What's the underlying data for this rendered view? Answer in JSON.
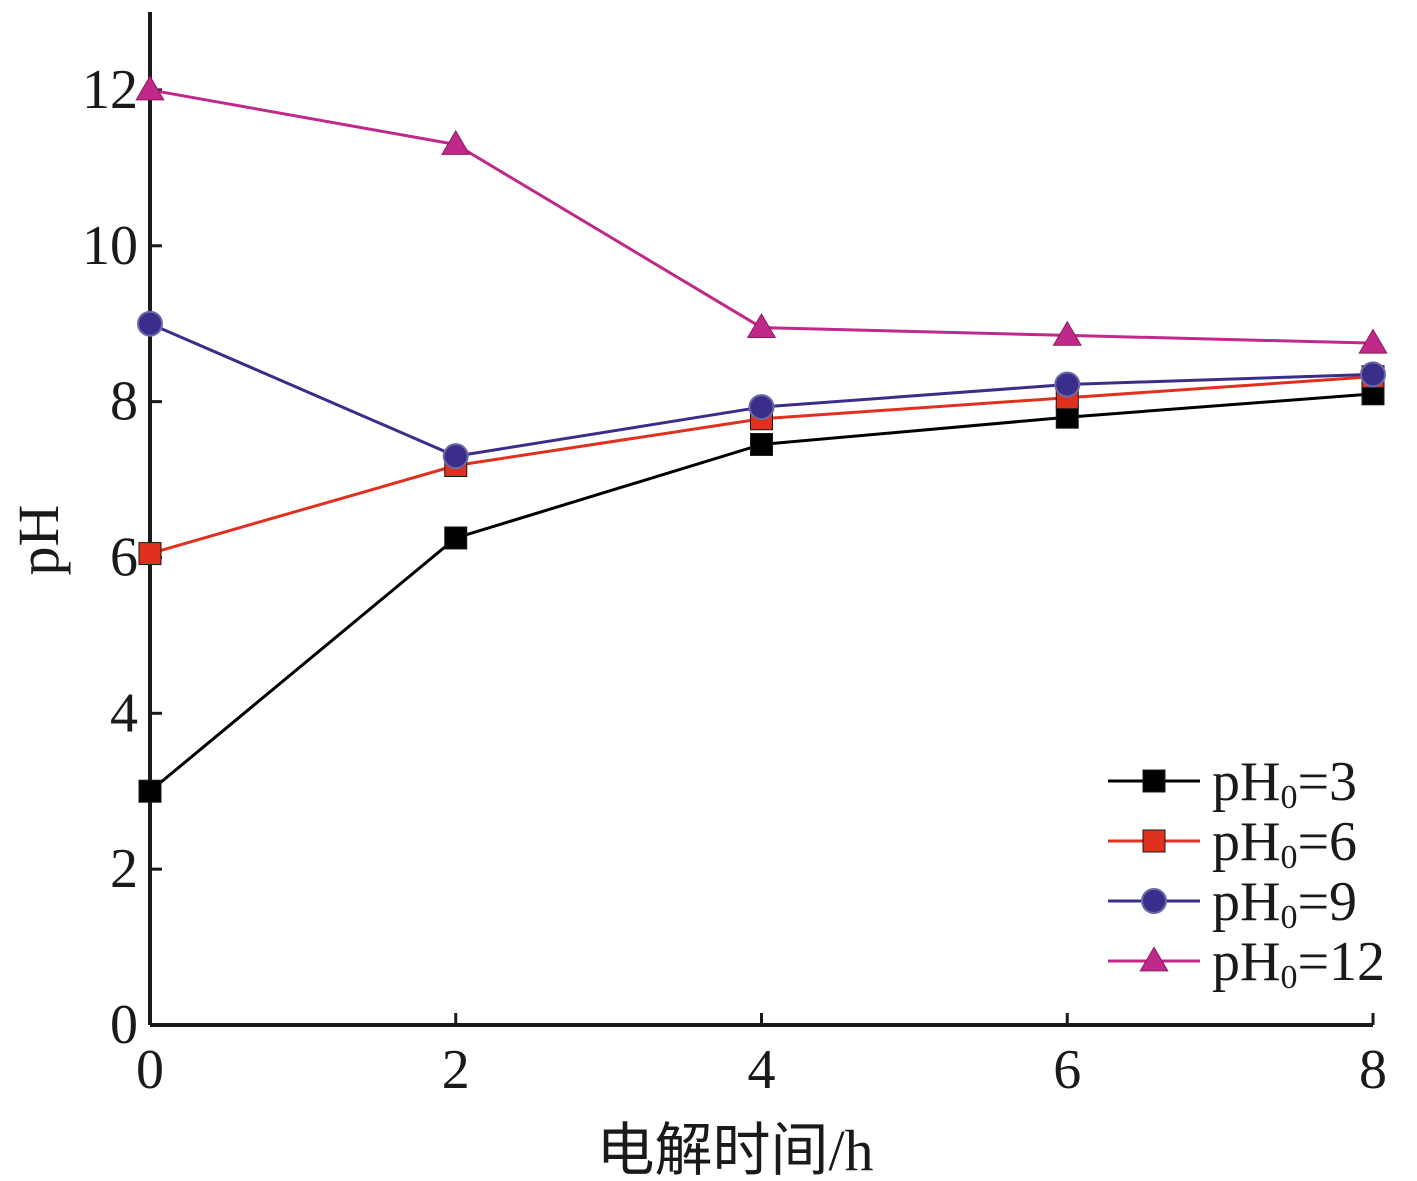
{
  "chart_data": {
    "type": "line",
    "xlabel": "电解时间/h",
    "ylabel": "pH",
    "xlim": [
      0,
      8
    ],
    "ylim": [
      0,
      13
    ],
    "xticks": [
      0,
      2,
      4,
      6,
      8
    ],
    "yticks": [
      0,
      2,
      4,
      6,
      8,
      10,
      12
    ],
    "x": [
      0,
      2,
      4,
      6,
      8
    ],
    "grid": false,
    "legend_position": "bottom-right",
    "series": [
      {
        "name": "pH0=3",
        "legend_main": "pH",
        "legend_sub": "0",
        "legend_tail": "=3",
        "color": "#000000",
        "marker": "square",
        "values": [
          3.0,
          6.25,
          7.45,
          7.8,
          8.1
        ]
      },
      {
        "name": "pH0=6",
        "legend_main": "pH",
        "legend_sub": "0",
        "legend_tail": "=6",
        "color": "#e0301e",
        "marker": "square",
        "values": [
          6.05,
          7.18,
          7.78,
          8.05,
          8.32
        ]
      },
      {
        "name": "pH0=9",
        "legend_main": "pH",
        "legend_sub": "0",
        "legend_tail": "=9",
        "color": "#3b2e8a",
        "marker": "circle",
        "values": [
          9.0,
          7.3,
          7.93,
          8.22,
          8.35
        ]
      },
      {
        "name": "pH0=12",
        "legend_main": "pH",
        "legend_sub": "0",
        "legend_tail": "=12",
        "color": "#c0288a",
        "marker": "triangle",
        "values": [
          12.0,
          11.3,
          8.95,
          8.85,
          8.75
        ]
      }
    ]
  }
}
